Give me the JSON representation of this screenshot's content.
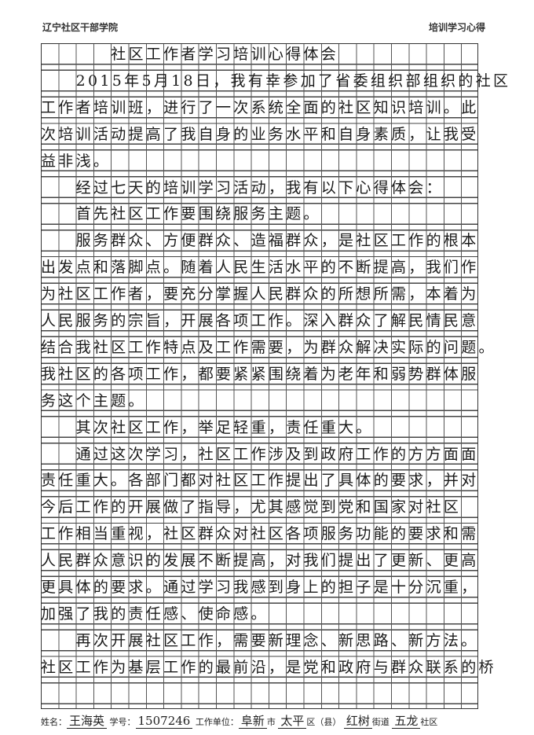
{
  "header": {
    "left": "辽宁社区干部学院",
    "right": "培训学习心得"
  },
  "lines": [
    "　　　　社区工作者学习培训心得体会",
    "　　2015年5月18日，我有幸参加了省委组织部组织的社区",
    "工作者培训班，进行了一次系统全面的社区知识培训。此",
    "次培训活动提高了我自身的业务水平和自身素质，让我受",
    "益非浅。",
    "　　经过七天的培训学习活动，我有以下心得体会：",
    "　　首先社区工作要围绕服务主题。",
    "　　服务群众、方便群众、造福群众，是社区工作的根本",
    "出发点和落脚点。随着人民生活水平的不断提高，我们作",
    "为社区工作者，要充分掌握人民群众的所想所需，本着为",
    "人民服务的宗旨，开展各项工作。深入群众了解民情民意",
    "结合我社区工作特点及工作需要，为群众解决实际的问题。",
    "我社区的各项工作，都要紧紧围绕着为老年和弱势群体服",
    "务这个主题。",
    "　　其次社区工作，举足轻重，责任重大。",
    "　　通过这次学习，社区工作涉及到政府工作的方方面面",
    "责任重大。各部门都对社区工作提出了具体的要求，并对",
    "今后工作的开展做了指导，尤其感觉到党和国家对社区",
    "工作相当重视，社区群众对社区各项服务功能的要求和需",
    "人民群众意识的发展不断提高，对我们提出了更新、更高",
    "更具体的要求。通过学习我感到身上的担子是十分沉重，",
    "加强了我的责任感、使命感。",
    "　　再次开展社区工作，需要新理念、新思路、新方法。",
    "社区工作为基层工作的最前沿，是党和政府与群众联系的桥"
  ],
  "footer": {
    "name_label": "姓名：",
    "name": "王海英",
    "id_label": "学号：",
    "id": "1507246",
    "unit_label": "工作单位：",
    "city": "阜新",
    "city_label": "市",
    "district": "太平",
    "district_label": "区（县）",
    "street": "红树",
    "street_label": "街道",
    "community": "五龙",
    "community_label": "社区"
  }
}
